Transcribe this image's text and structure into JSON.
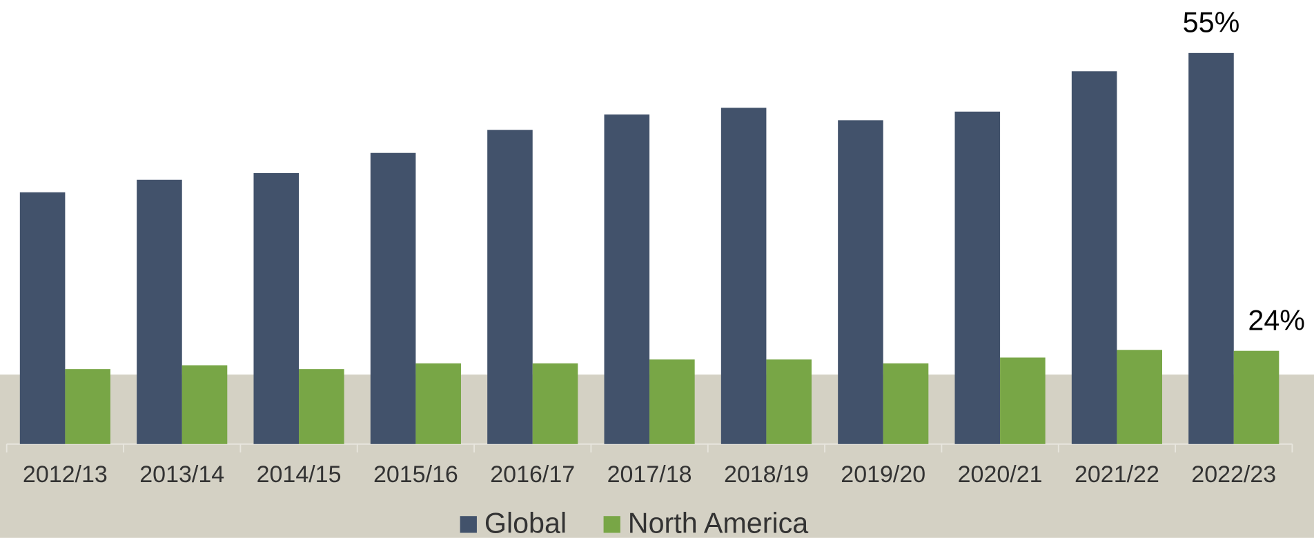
{
  "chart_data": {
    "type": "bar",
    "categories": [
      "2012/13",
      "2013/14",
      "2014/15",
      "2015/16",
      "2016/17",
      "2017/18",
      "2018/19",
      "2019/20",
      "2020/21",
      "2021/22",
      "2022/23"
    ],
    "series": [
      {
        "name": "Global",
        "color": "#42526b",
        "values": [
          40.5,
          41.8,
          42.5,
          44.6,
          47.0,
          48.6,
          49.3,
          48.0,
          48.9,
          53.1,
          55
        ],
        "value_labels": [
          null,
          null,
          null,
          null,
          null,
          null,
          null,
          null,
          null,
          null,
          "55%"
        ]
      },
      {
        "name": "North America",
        "color": "#78a646",
        "values": [
          22.1,
          22.5,
          22.1,
          22.7,
          22.7,
          23.1,
          23.1,
          22.7,
          23.3,
          24.1,
          24
        ],
        "value_labels": [
          null,
          null,
          null,
          null,
          null,
          null,
          null,
          null,
          null,
          null,
          "24%"
        ]
      }
    ],
    "ylim": [
      14.3,
      60.5
    ],
    "grid": false,
    "legend": "bottom"
  }
}
